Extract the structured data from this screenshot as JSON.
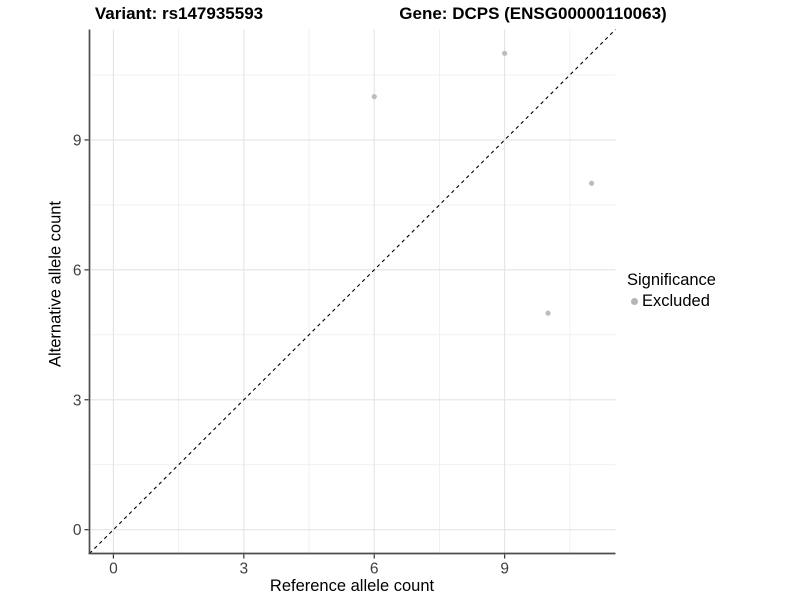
{
  "chart_data": {
    "type": "scatter",
    "title_left": "Variant: rs147935593",
    "title_right": "Gene: DCPS (ENSG00000110063)",
    "xlabel": "Reference allele count",
    "ylabel": "Alternative allele count",
    "xlim": [
      0,
      11
    ],
    "ylim": [
      0,
      11
    ],
    "xticks": [
      0,
      3,
      6,
      9
    ],
    "yticks": [
      0,
      3,
      6,
      9
    ],
    "x_minor_ticks": [
      1.5,
      4.5,
      7.5,
      10.5
    ],
    "y_minor_ticks": [
      1.5,
      4.5,
      7.5,
      10.5
    ],
    "grid": true,
    "identity_line": {
      "equation": "y = x",
      "style": "dashed",
      "color": "#000000"
    },
    "series": [
      {
        "name": "Excluded",
        "color": "#bdbdbd",
        "points": [
          [
            6,
            10
          ],
          [
            9,
            11
          ],
          [
            11,
            8
          ],
          [
            10,
            5
          ]
        ]
      }
    ],
    "legend": {
      "title": "Significance",
      "position": "right",
      "items": [
        {
          "label": "Excluded",
          "color": "#b5b5b5"
        }
      ]
    }
  }
}
